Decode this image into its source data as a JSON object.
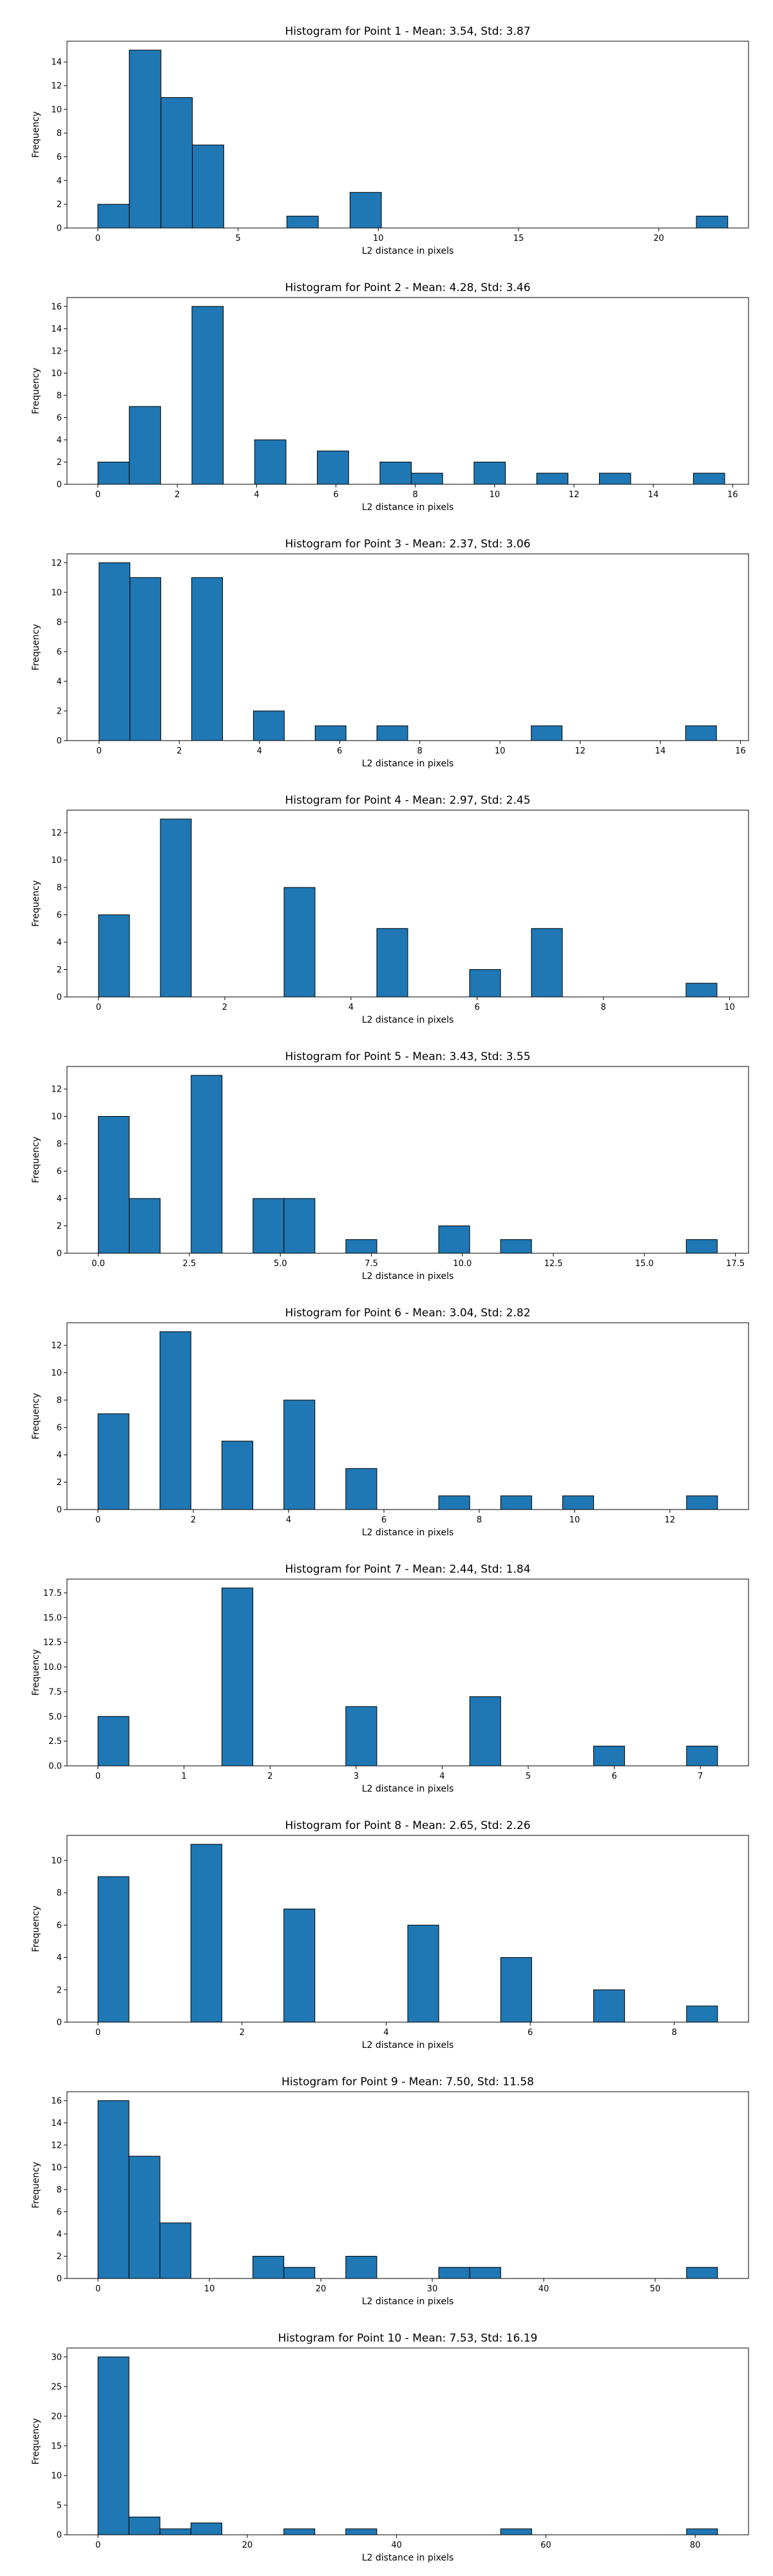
{
  "chart_data": [
    {
      "type": "bar",
      "title": "Histogram for Point 1 - Mean: 3.54, Std: 3.87",
      "xlabel": "L2 distance in pixels",
      "ylabel": "Frequency",
      "xlim": [
        -1.1,
        23.2
      ],
      "ylim": [
        0,
        15.75
      ],
      "xticks": [
        0,
        5,
        10,
        15,
        20
      ],
      "xtick_labels": [
        "0",
        "5",
        "10",
        "15",
        "20"
      ],
      "yticks": [
        0,
        2,
        4,
        6,
        8,
        10,
        12,
        14
      ],
      "yticks_labels": [
        "0",
        "2",
        "4",
        "6",
        "8",
        "10",
        "12",
        "14"
      ],
      "bin_edges": [
        0.0,
        1.12,
        2.25,
        3.37,
        4.49,
        5.62,
        6.74,
        7.86,
        8.99,
        10.11,
        11.23,
        12.35,
        13.48,
        14.6,
        15.72,
        16.85,
        17.97,
        19.09,
        20.22,
        21.34,
        22.46
      ],
      "counts": [
        2,
        15,
        11,
        7,
        0,
        0,
        1,
        0,
        3,
        0,
        0,
        0,
        0,
        0,
        0,
        0,
        0,
        0,
        0,
        1
      ]
    },
    {
      "type": "bar",
      "title": "Histogram for Point 2 - Mean: 4.28, Std: 3.46",
      "xlabel": "L2 distance in pixels",
      "ylabel": "Frequency",
      "xlim": [
        -0.78,
        16.4
      ],
      "ylim": [
        0,
        16.8
      ],
      "xticks": [
        0,
        2,
        4,
        6,
        8,
        10,
        12,
        14,
        16
      ],
      "xtick_labels": [
        "0",
        "2",
        "4",
        "6",
        "8",
        "10",
        "12",
        "14",
        "16"
      ],
      "yticks": [
        0,
        2,
        4,
        6,
        8,
        10,
        12,
        14,
        16
      ],
      "yticks_labels": [
        "0",
        "2",
        "4",
        "6",
        "8",
        "10",
        "12",
        "14",
        "16"
      ],
      "bin_edges": [
        0.0,
        0.79,
        1.58,
        2.37,
        3.16,
        3.95,
        4.74,
        5.53,
        6.32,
        7.11,
        7.9,
        8.69,
        9.48,
        10.27,
        11.06,
        11.85,
        12.64,
        13.43,
        14.22,
        15.01,
        15.8
      ],
      "counts": [
        2,
        7,
        0,
        16,
        0,
        4,
        0,
        3,
        0,
        2,
        1,
        0,
        2,
        0,
        1,
        0,
        1,
        0,
        0,
        1
      ]
    },
    {
      "type": "bar",
      "title": "Histogram for Point 3 - Mean: 2.37, Std: 3.06",
      "xlabel": "L2 distance in pixels",
      "ylabel": "Frequency",
      "xlim": [
        -0.8,
        16.2
      ],
      "ylim": [
        0,
        12.6
      ],
      "xticks": [
        0,
        2,
        4,
        6,
        8,
        10,
        12,
        14,
        16
      ],
      "xtick_labels": [
        "0",
        "2",
        "4",
        "6",
        "8",
        "10",
        "12",
        "14",
        "16"
      ],
      "yticks": [
        0,
        2,
        4,
        6,
        8,
        10,
        12
      ],
      "yticks_labels": [
        "0",
        "2",
        "4",
        "6",
        "8",
        "10",
        "12"
      ],
      "bin_edges": [
        0.0,
        0.77,
        1.54,
        2.31,
        3.08,
        3.85,
        4.62,
        5.39,
        6.16,
        6.93,
        7.7,
        8.47,
        9.24,
        10.01,
        10.78,
        11.55,
        12.32,
        13.09,
        13.86,
        14.63,
        15.4
      ],
      "counts": [
        12,
        11,
        0,
        11,
        0,
        2,
        0,
        1,
        0,
        1,
        0,
        0,
        0,
        0,
        1,
        0,
        0,
        0,
        0,
        1
      ]
    },
    {
      "type": "bar",
      "title": "Histogram for Point 4 - Mean: 2.97, Std: 2.45",
      "xlabel": "L2 distance in pixels",
      "ylabel": "Frequency",
      "xlim": [
        -0.5,
        10.3
      ],
      "ylim": [
        0,
        13.65
      ],
      "xticks": [
        0,
        2,
        4,
        6,
        8,
        10
      ],
      "xtick_labels": [
        "0",
        "2",
        "4",
        "6",
        "8",
        "10"
      ],
      "yticks": [
        0,
        2,
        4,
        6,
        8,
        10,
        12
      ],
      "yticks_labels": [
        "0",
        "2",
        "4",
        "6",
        "8",
        "10",
        "12"
      ],
      "bin_edges": [
        0.0,
        0.49,
        0.98,
        1.47,
        1.96,
        2.45,
        2.94,
        3.43,
        3.92,
        4.41,
        4.9,
        5.39,
        5.88,
        6.37,
        6.86,
        7.35,
        7.84,
        8.33,
        8.82,
        9.31,
        9.8
      ],
      "counts": [
        6,
        0,
        13,
        0,
        0,
        0,
        8,
        0,
        0,
        5,
        0,
        0,
        2,
        0,
        5,
        0,
        0,
        0,
        0,
        1
      ]
    },
    {
      "type": "bar",
      "title": "Histogram for Point 5 - Mean: 3.43, Std: 3.55",
      "xlabel": "L2 distance in pixels",
      "ylabel": "Frequency",
      "xlim": [
        -0.86,
        17.86
      ],
      "ylim": [
        0,
        13.65
      ],
      "xticks": [
        0,
        2.5,
        5,
        7.5,
        10,
        12.5,
        15,
        17.5
      ],
      "xtick_labels": [
        "0.0",
        "2.5",
        "5.0",
        "7.5",
        "10.0",
        "12.5",
        "15.0",
        "17.5"
      ],
      "yticks": [
        0,
        2,
        4,
        6,
        8,
        10,
        12
      ],
      "yticks_labels": [
        "0",
        "2",
        "4",
        "6",
        "8",
        "10",
        "12"
      ],
      "bin_edges": [
        0.0,
        0.85,
        1.7,
        2.55,
        3.4,
        4.25,
        5.1,
        5.95,
        6.8,
        7.65,
        8.5,
        9.35,
        10.2,
        11.05,
        11.9,
        12.75,
        13.6,
        14.45,
        15.3,
        16.15,
        17.0
      ],
      "counts": [
        10,
        4,
        0,
        13,
        0,
        4,
        4,
        0,
        1,
        0,
        0,
        2,
        0,
        1,
        0,
        0,
        0,
        0,
        0,
        1
      ]
    },
    {
      "type": "bar",
      "title": "Histogram for Point 6 - Mean: 3.04, Std: 2.82",
      "xlabel": "L2 distance in pixels",
      "ylabel": "Frequency",
      "xlim": [
        -0.65,
        13.65
      ],
      "ylim": [
        0,
        13.65
      ],
      "xticks": [
        0,
        2,
        4,
        6,
        8,
        10,
        12
      ],
      "xtick_labels": [
        "0",
        "2",
        "4",
        "6",
        "8",
        "10",
        "12"
      ],
      "yticks": [
        0,
        2,
        4,
        6,
        8,
        10,
        12
      ],
      "yticks_labels": [
        "0",
        "2",
        "4",
        "6",
        "8",
        "10",
        "12"
      ],
      "bin_edges": [
        0.0,
        0.65,
        1.3,
        1.95,
        2.6,
        3.25,
        3.9,
        4.55,
        5.2,
        5.85,
        6.5,
        7.15,
        7.8,
        8.45,
        9.1,
        9.75,
        10.4,
        11.05,
        11.7,
        12.35,
        13.0
      ],
      "counts": [
        7,
        0,
        13,
        0,
        5,
        0,
        8,
        0,
        3,
        0,
        0,
        1,
        0,
        1,
        0,
        1,
        0,
        0,
        0,
        1
      ]
    },
    {
      "type": "bar",
      "title": "Histogram for Point 7 - Mean: 2.44, Std: 1.84",
      "xlabel": "L2 distance in pixels",
      "ylabel": "Frequency",
      "xlim": [
        -0.36,
        7.56
      ],
      "ylim": [
        0,
        18.9
      ],
      "xticks": [
        0,
        1,
        2,
        3,
        4,
        5,
        6,
        7
      ],
      "xtick_labels": [
        "0",
        "1",
        "2",
        "3",
        "4",
        "5",
        "6",
        "7"
      ],
      "yticks": [
        0,
        2.5,
        5,
        7.5,
        10,
        12.5,
        15,
        17.5
      ],
      "yticks_labels": [
        "0.0",
        "2.5",
        "5.0",
        "7.5",
        "10.0",
        "12.5",
        "15.0",
        "17.5"
      ],
      "bin_edges": [
        0.0,
        0.36,
        0.72,
        1.08,
        1.44,
        1.8,
        2.16,
        2.52,
        2.88,
        3.24,
        3.6,
        3.96,
        4.32,
        4.68,
        5.04,
        5.4,
        5.76,
        6.12,
        6.48,
        6.84,
        7.2
      ],
      "counts": [
        5,
        0,
        0,
        0,
        18,
        0,
        0,
        0,
        6,
        0,
        0,
        0,
        7,
        0,
        0,
        0,
        2,
        0,
        0,
        2
      ]
    },
    {
      "type": "bar",
      "title": "Histogram for Point 8 - Mean: 2.65, Std: 2.26",
      "xlabel": "L2 distance in pixels",
      "ylabel": "Frequency",
      "xlim": [
        -0.43,
        9.03
      ],
      "ylim": [
        0,
        11.55
      ],
      "xticks": [
        0,
        2,
        4,
        6,
        8
      ],
      "xtick_labels": [
        "0",
        "2",
        "4",
        "6",
        "8"
      ],
      "yticks": [
        0,
        2,
        4,
        6,
        8,
        10
      ],
      "yticks_labels": [
        "0",
        "2",
        "4",
        "6",
        "8",
        "10"
      ],
      "bin_edges": [
        0.0,
        0.43,
        0.86,
        1.29,
        1.72,
        2.15,
        2.58,
        3.01,
        3.44,
        3.87,
        4.3,
        4.73,
        5.16,
        5.59,
        6.02,
        6.45,
        6.88,
        7.31,
        7.74,
        8.17,
        8.6
      ],
      "counts": [
        9,
        0,
        0,
        11,
        0,
        0,
        7,
        0,
        0,
        0,
        6,
        0,
        0,
        4,
        0,
        0,
        2,
        0,
        0,
        1
      ]
    },
    {
      "type": "bar",
      "title": "Histogram for Point 9 - Mean: 7.50, Std: 11.58",
      "xlabel": "L2 distance in pixels",
      "ylabel": "Frequency",
      "xlim": [
        -2.78,
        58.38
      ],
      "ylim": [
        0,
        16.8
      ],
      "xticks": [
        0,
        10,
        20,
        30,
        40,
        50
      ],
      "xtick_labels": [
        "0",
        "10",
        "20",
        "30",
        "40",
        "50"
      ],
      "yticks": [
        0,
        2,
        4,
        6,
        8,
        10,
        12,
        14,
        16
      ],
      "yticks_labels": [
        "0",
        "2",
        "4",
        "6",
        "8",
        "10",
        "12",
        "14",
        "16"
      ],
      "bin_edges": [
        0.0,
        2.78,
        5.56,
        8.34,
        11.12,
        13.9,
        16.68,
        19.46,
        22.24,
        25.02,
        27.8,
        30.58,
        33.36,
        36.14,
        38.92,
        41.7,
        44.48,
        47.26,
        50.04,
        52.82,
        55.6
      ],
      "counts": [
        16,
        11,
        5,
        0,
        0,
        2,
        1,
        0,
        2,
        0,
        0,
        1,
        1,
        0,
        0,
        0,
        0,
        0,
        0,
        1
      ]
    },
    {
      "type": "bar",
      "title": "Histogram for Point 10 - Mean: 7.53, Std: 16.19",
      "xlabel": "L2 distance in pixels",
      "ylabel": "Frequency",
      "xlim": [
        -4.15,
        87.15
      ],
      "ylim": [
        0,
        31.5
      ],
      "xticks": [
        0,
        20,
        40,
        60,
        80
      ],
      "xtick_labels": [
        "0",
        "20",
        "40",
        "60",
        "80"
      ],
      "yticks": [
        0,
        5,
        10,
        15,
        20,
        25,
        30
      ],
      "yticks_labels": [
        "0",
        "5",
        "10",
        "15",
        "20",
        "25",
        "30"
      ],
      "bin_edges": [
        0.0,
        4.15,
        8.3,
        12.45,
        16.6,
        20.75,
        24.9,
        29.05,
        33.2,
        37.35,
        41.5,
        45.65,
        49.8,
        53.95,
        58.1,
        62.25,
        66.4,
        70.55,
        74.7,
        78.85,
        83.0
      ],
      "counts": [
        30,
        3,
        1,
        2,
        0,
        0,
        1,
        0,
        1,
        0,
        0,
        0,
        0,
        1,
        0,
        0,
        0,
        0,
        0,
        1
      ]
    }
  ]
}
